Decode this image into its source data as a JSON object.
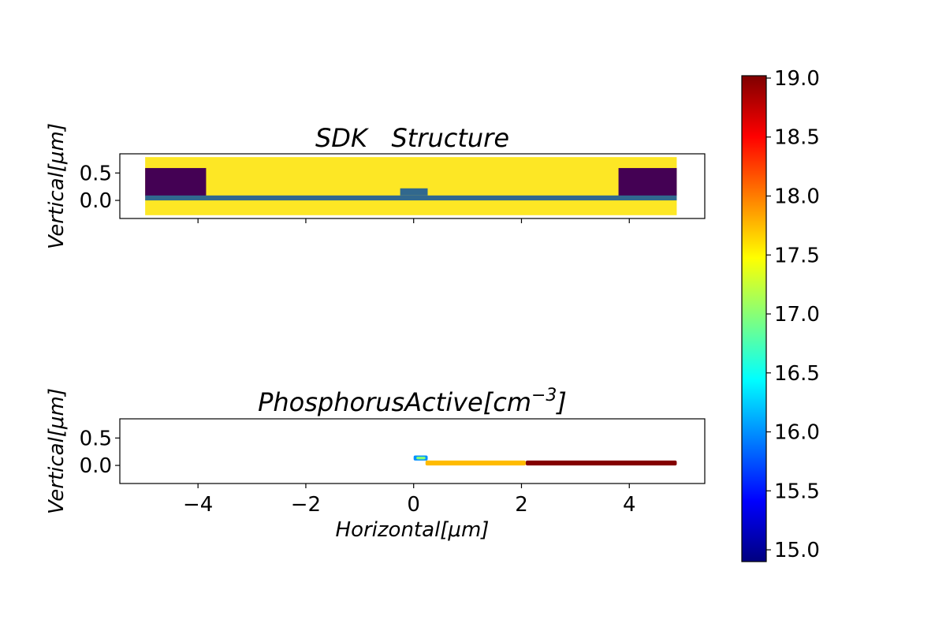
{
  "colormap": {
    "name": "jet",
    "stops": [
      "#00007f",
      "#0000ff",
      "#007fff",
      "#00ffff",
      "#7fff7f",
      "#ffff00",
      "#ff7f00",
      "#ff0000",
      "#7f0000"
    ]
  },
  "chart_data": [
    {
      "type": "heatmap",
      "title": "SDK   Structure",
      "xlabel": "",
      "ylabel": "Vertical[μm]",
      "xlim": [
        -5.45,
        5.4
      ],
      "ylim": [
        -0.33,
        0.85
      ],
      "xticks": [
        -4,
        -2,
        0,
        2,
        4
      ],
      "xtick_labels_shown": false,
      "yticks": [
        0.0,
        0.5
      ],
      "ytick_labels": [
        "0.0",
        "0.5"
      ],
      "regions": [
        {
          "name": "body",
          "x": [
            -4.98,
            4.88
          ],
          "y": [
            -0.27,
            0.79
          ],
          "color": "#fde725"
        },
        {
          "name": "left-contact",
          "x": [
            -4.98,
            -3.85
          ],
          "y": [
            0.08,
            0.59
          ],
          "color": "#440154"
        },
        {
          "name": "right-contact",
          "x": [
            3.8,
            4.88
          ],
          "y": [
            0.08,
            0.59
          ],
          "color": "#440154"
        },
        {
          "name": "channel-layer",
          "x": [
            -4.98,
            4.88
          ],
          "y": [
            0.0,
            0.09
          ],
          "color": "#31688e"
        },
        {
          "name": "center-bump",
          "x": [
            -0.25,
            0.26
          ],
          "y": [
            0.09,
            0.22
          ],
          "color": "#31688e"
        }
      ]
    },
    {
      "type": "heatmap",
      "title": "PhosphorusActive[cm",
      "title_superscript": "−3",
      "title_suffix": "]",
      "xlabel": "Horizontal[μm]",
      "ylabel": "Vertical[μm]",
      "xlim": [
        -5.45,
        5.4
      ],
      "ylim": [
        -0.33,
        0.85
      ],
      "xticks": [
        -4,
        -2,
        0,
        2,
        4
      ],
      "xtick_labels": [
        "−4",
        "−2",
        "0",
        "2",
        "4"
      ],
      "yticks": [
        0.0,
        0.5
      ],
      "ytick_labels": [
        "0.0",
        "0.5"
      ],
      "segments": [
        {
          "x": [
            0.0,
            0.26
          ],
          "y": [
            0.09,
            0.18
          ],
          "value": 16.0
        },
        {
          "x": [
            0.05,
            0.22
          ],
          "y": [
            0.11,
            0.16
          ],
          "value": 17.0
        },
        {
          "x": [
            0.22,
            2.08
          ],
          "y": [
            0.0,
            0.09
          ],
          "value": 17.75
        },
        {
          "x": [
            2.08,
            4.88
          ],
          "y": [
            0.0,
            0.09
          ],
          "value": 19.0
        }
      ]
    }
  ],
  "colorbar": {
    "min": 14.9,
    "max": 19.02,
    "ticks": [
      15.0,
      15.5,
      16.0,
      16.5,
      17.0,
      17.5,
      18.0,
      18.5,
      19.0
    ],
    "tick_labels": [
      "15.0",
      "15.5",
      "16.0",
      "16.5",
      "17.0",
      "17.5",
      "18.0",
      "18.5",
      "19.0"
    ]
  }
}
